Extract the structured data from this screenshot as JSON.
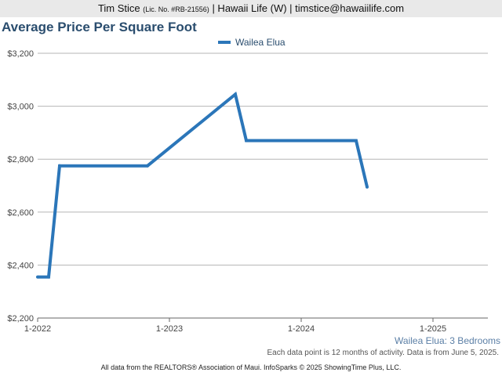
{
  "header": {
    "name": "Tim Stice",
    "license": "(Lic. No. #RB-21556)",
    "rest": "| Hawaii Life (W) | timstice@hawaiilife.com"
  },
  "chart_data": {
    "type": "line",
    "title": "Average Price Per Square Foot",
    "subtitle": "Wailea Elua: 3 Bedrooms",
    "note": "Each data point is 12 months of activity. Data is from June 5, 2025.",
    "ylim": [
      2200,
      3200
    ],
    "yticks": [
      2200,
      2400,
      2600,
      2800,
      3000,
      3200
    ],
    "ytick_labels": [
      "$2,200",
      "$2,400",
      "$2,600",
      "$2,800",
      "$3,000",
      "$3,200"
    ],
    "xlim": [
      "2022-01",
      "2025-06"
    ],
    "xticks": [
      "2022-01",
      "2023-01",
      "2024-01",
      "2025-01"
    ],
    "xtick_labels": [
      "1-2022",
      "1-2023",
      "1-2024",
      "1-2025"
    ],
    "grid": true,
    "legend_position": "top-center",
    "series": [
      {
        "name": "Wailea Elua",
        "color": "#2b76b9",
        "points": [
          {
            "x": "2022-01",
            "y": 2355
          },
          {
            "x": "2022-02",
            "y": 2355
          },
          {
            "x": "2022-03",
            "y": 2775
          },
          {
            "x": "2022-11",
            "y": 2775
          },
          {
            "x": "2023-07",
            "y": 3045
          },
          {
            "x": "2023-08",
            "y": 2870
          },
          {
            "x": "2024-06",
            "y": 2870
          },
          {
            "x": "2024-07",
            "y": 2695
          }
        ]
      }
    ]
  },
  "footer": "All data from the REALTORS® Association of Maui. InfoSparks © 2025 ShowingTime Plus, LLC."
}
